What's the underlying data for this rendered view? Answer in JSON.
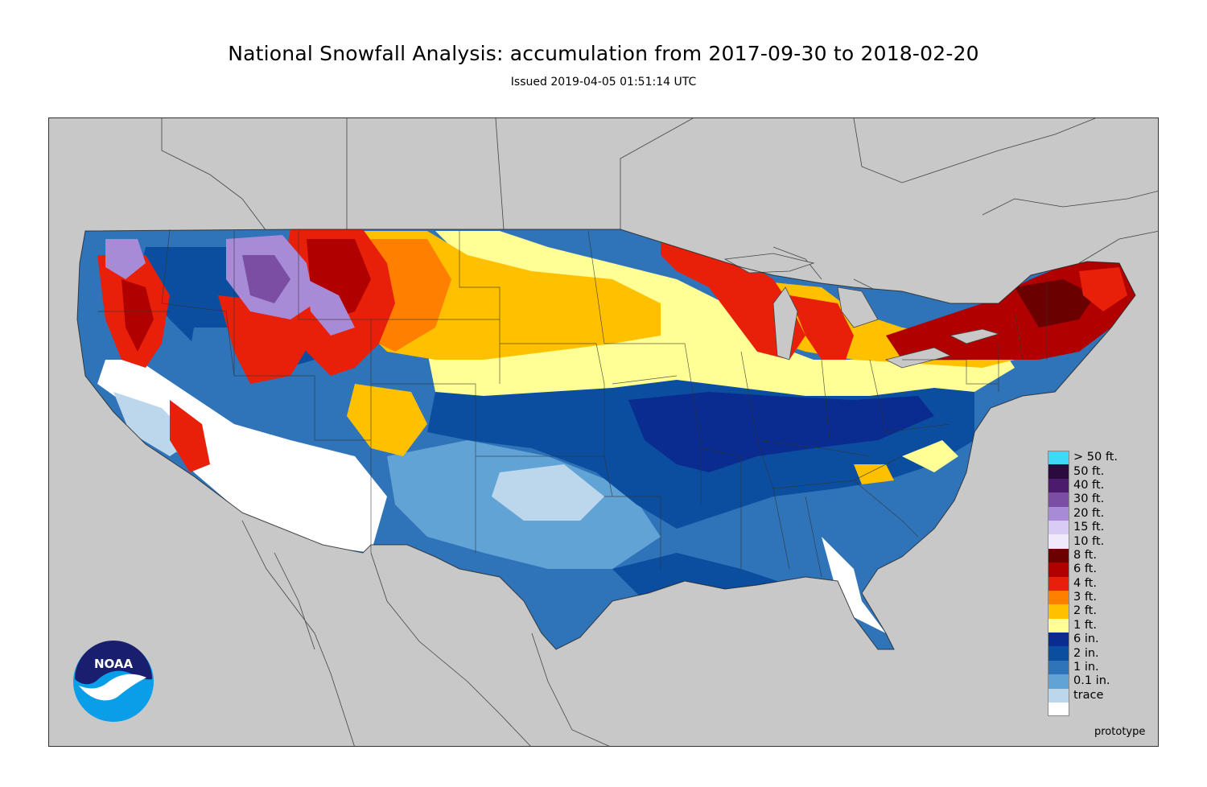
{
  "title": "National Snowfall Analysis: accumulation from 2017-09-30 to 2018-02-20",
  "subtitle": "Issued 2019-04-05 01:51:14 UTC",
  "watermark": "prototype",
  "logo": {
    "text": "NOAA",
    "icon": "noaa-logo"
  },
  "map": {
    "background_color": "#c8c8c8",
    "land_outline_color": "#555555"
  },
  "legend": {
    "items": [
      {
        "label": "> 50 ft.",
        "color": "#40d8f8"
      },
      {
        "label": "50 ft.",
        "color": "#2b0a3d"
      },
      {
        "label": "40 ft.",
        "color": "#4d1b6e"
      },
      {
        "label": "30 ft.",
        "color": "#7b4ea3"
      },
      {
        "label": "20 ft.",
        "color": "#a78bd6"
      },
      {
        "label": "15 ft.",
        "color": "#d9ccf4"
      },
      {
        "label": "10 ft.",
        "color": "#f0e9fb"
      },
      {
        "label": "8 ft.",
        "color": "#6b0000"
      },
      {
        "label": "6 ft.",
        "color": "#b00000"
      },
      {
        "label": "4 ft.",
        "color": "#e8200a"
      },
      {
        "label": "3 ft.",
        "color": "#ff8000"
      },
      {
        "label": "2 ft.",
        "color": "#ffc000"
      },
      {
        "label": "1 ft.",
        "color": "#ffff96"
      },
      {
        "label": "6 in.",
        "color": "#0a2b8f"
      },
      {
        "label": "2 in.",
        "color": "#0b4ea0"
      },
      {
        "label": "1 in.",
        "color": "#2f73b8"
      },
      {
        "label": "0.1 in.",
        "color": "#62a3d6"
      },
      {
        "label": "trace",
        "color": "#bcd7ec"
      },
      {
        "label": "",
        "color": "#ffffff"
      }
    ]
  }
}
